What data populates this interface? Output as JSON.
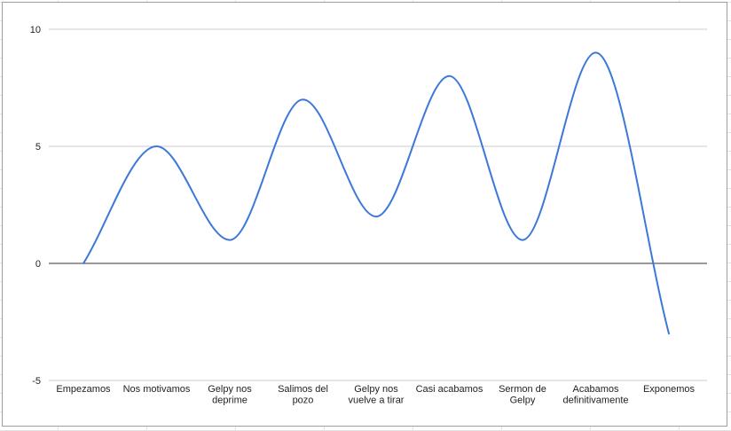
{
  "chart_data": {
    "type": "line",
    "smooth": true,
    "title": "",
    "xlabel": "",
    "ylabel": "",
    "categories": [
      "Empezamos",
      "Nos motivamos",
      "Gelpy nos deprime",
      "Salimos del pozo",
      "Gelpy nos vuelve a tirar",
      "Casi acabamos",
      "Sermon de Gelpy",
      "Acabamos definitivamente",
      "Exponemos"
    ],
    "category_lines": [
      [
        "Empezamos"
      ],
      [
        "Nos motivamos"
      ],
      [
        "Gelpy nos",
        "deprime"
      ],
      [
        "Salimos del",
        "pozo"
      ],
      [
        "Gelpy nos",
        "vuelve a tirar"
      ],
      [
        "Casi acabamos"
      ],
      [
        "Sermon de",
        "Gelpy"
      ],
      [
        "Acabamos",
        "definitivamente"
      ],
      [
        "Exponemos"
      ]
    ],
    "series": [
      {
        "values": [
          0,
          5,
          1,
          7,
          2,
          8,
          1,
          9,
          -3
        ],
        "color": "#3c78d8"
      }
    ],
    "ylim": [
      -5,
      10
    ],
    "yticks": [
      -5,
      0,
      5,
      10
    ],
    "grid": true,
    "legend": "none"
  }
}
